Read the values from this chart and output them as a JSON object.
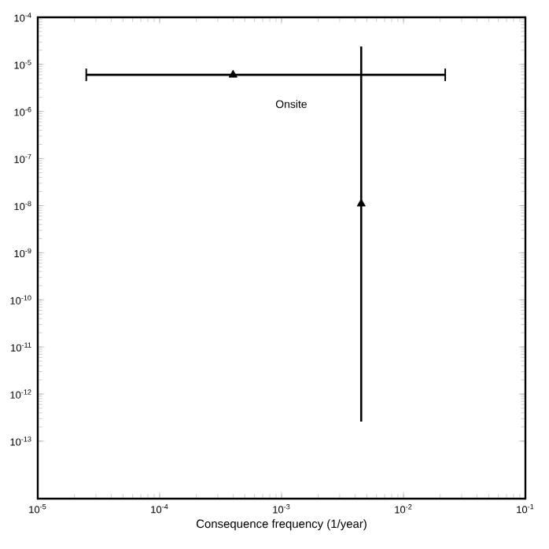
{
  "chart_data": {
    "type": "scatter",
    "xlabel": "Consequence frequency (1/year)",
    "log": "xy",
    "marker": "triangle",
    "grid": false,
    "xlim": [
      1e-05,
      0.1
    ],
    "ylim": [
      6e-15,
      0.0001
    ],
    "xticks": [
      {
        "value": 1e-05,
        "label": "10$^{-5}$"
      },
      {
        "value": 0.0001,
        "label": "10$^{-4}$"
      },
      {
        "value": 0.001,
        "label": "10$^{-3}$"
      },
      {
        "value": 0.01,
        "label": "10$^{-2}$"
      },
      {
        "value": 0.1,
        "label": "10$^{-1}$"
      }
    ],
    "yticks": [
      {
        "value": 1e-13,
        "label": "10$^{-13}$"
      },
      {
        "value": 1e-12,
        "label": "10$^{-12}$"
      },
      {
        "value": 1e-11,
        "label": "10$^{-11}$"
      },
      {
        "value": 1e-10,
        "label": "10$^{-10}$"
      },
      {
        "value": 1e-09,
        "label": "10$^{-9}$"
      },
      {
        "value": 1e-08,
        "label": "10$^{-8}$"
      },
      {
        "value": 1e-07,
        "label": "10$^{-7}$"
      },
      {
        "value": 1e-06,
        "label": "10$^{-6}$"
      },
      {
        "value": 1e-05,
        "label": "10$^{-5}$"
      },
      {
        "value": 0.0001,
        "label": "10$^{-4}$"
      }
    ],
    "series": [
      {
        "color": "#000000",
        "x": [
          0.0004
        ],
        "values": [
          6e-06
        ],
        "xerrors": [
          [
            2.5e-05,
            0.022
          ]
        ]
      },
      {
        "color": "#000000",
        "x": [
          0.0045
        ],
        "values": [
          1.1e-08
        ],
        "errors": [
          [
            2.6e-13,
            2.4e-05
          ]
        ]
      }
    ],
    "annotations": [
      "Onsite"
    ]
  }
}
